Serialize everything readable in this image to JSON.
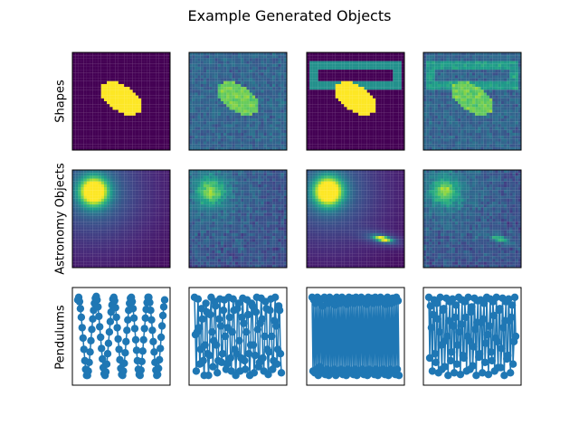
{
  "figure": {
    "title": "Example Generated Objects"
  },
  "chart_data": {
    "type": "image-grid",
    "title": "Example Generated Objects",
    "rows": [
      {
        "label": "Shapes",
        "panels": [
          {
            "kind": "image",
            "content": "filled yellow ellipse on dark background",
            "noise": false,
            "rectangle": false
          },
          {
            "kind": "image",
            "content": "ellipse with noise",
            "noise": true,
            "rectangle": false
          },
          {
            "kind": "image",
            "content": "ellipse inside rectangle frame",
            "noise": false,
            "rectangle": true
          },
          {
            "kind": "image",
            "content": "ellipse inside rectangle frame with noise",
            "noise": true,
            "rectangle": true
          }
        ]
      },
      {
        "label": "Astronomy Objects",
        "panels": [
          {
            "kind": "image",
            "content": "bright star with halo",
            "noise": false,
            "galaxy": false
          },
          {
            "kind": "image",
            "content": "star with noise",
            "noise": true,
            "galaxy": false
          },
          {
            "kind": "image",
            "content": "star with galaxy",
            "noise": false,
            "galaxy": true
          },
          {
            "kind": "image",
            "content": "star with galaxy and noise",
            "noise": true,
            "galaxy": true
          }
        ]
      },
      {
        "label": "Pendulums",
        "panels": [
          {
            "kind": "line",
            "y": [
              0.92,
              0.95,
              0.9,
              0.82,
              0.72,
              0.6,
              0.48,
              0.35,
              0.22,
              0.12,
              0.05,
              0.05,
              0.1,
              0.2,
              0.32,
              0.45,
              0.58,
              0.7,
              0.8,
              0.88,
              0.94,
              0.96,
              0.92,
              0.84,
              0.73,
              0.61,
              0.49,
              0.36,
              0.24,
              0.14,
              0.07,
              0.05,
              0.09,
              0.18,
              0.3,
              0.42,
              0.55,
              0.67,
              0.78,
              0.86,
              0.93,
              0.95,
              0.91,
              0.83,
              0.72,
              0.6,
              0.47,
              0.35,
              0.23,
              0.13,
              0.06,
              0.05,
              0.1,
              0.19,
              0.31,
              0.44,
              0.57,
              0.69,
              0.8,
              0.88,
              0.94,
              0.95,
              0.9,
              0.82,
              0.71,
              0.59,
              0.46,
              0.34,
              0.22,
              0.12,
              0.06,
              0.05,
              0.11,
              0.21,
              0.33,
              0.46,
              0.59,
              0.71,
              0.81,
              0.89,
              0.95,
              0.95,
              0.89,
              0.8,
              0.69,
              0.57,
              0.44,
              0.32,
              0.2,
              0.11,
              0.05,
              0.06,
              0.13,
              0.23,
              0.36,
              0.49,
              0.62,
              0.74,
              0.84,
              0.92
            ]
          },
          {
            "kind": "line",
            "y": [
              0.95,
              0.52,
              0.1,
              0.55,
              0.93,
              0.6,
              0.18,
              0.35,
              0.82,
              0.7,
              0.22,
              0.05,
              0.4,
              0.88,
              0.78,
              0.3,
              0.05,
              0.28,
              0.75,
              0.95,
              0.55,
              0.15,
              0.45,
              0.9,
              0.85,
              0.4,
              0.08,
              0.22,
              0.7,
              0.93,
              0.62,
              0.2,
              0.3,
              0.8,
              0.92,
              0.5,
              0.12,
              0.18,
              0.6,
              0.95,
              0.72,
              0.25,
              0.1,
              0.55,
              0.93,
              0.8,
              0.35,
              0.05,
              0.3,
              0.82,
              0.88,
              0.45,
              0.1,
              0.25,
              0.72,
              0.94,
              0.65,
              0.22,
              0.12,
              0.55,
              0.92,
              0.75,
              0.3,
              0.05,
              0.4,
              0.88,
              0.85,
              0.4,
              0.08,
              0.28,
              0.78,
              0.95,
              0.58,
              0.15,
              0.2,
              0.65,
              0.94,
              0.7,
              0.25,
              0.1,
              0.5,
              0.9,
              0.82,
              0.35,
              0.06,
              0.32,
              0.8,
              0.93,
              0.5,
              0.12,
              0.22,
              0.68,
              0.95,
              0.62,
              0.18,
              0.35,
              0.85,
              0.8,
              0.3,
              0.08
            ]
          },
          {
            "kind": "line",
            "y": [
              0.95,
              0.1,
              0.92,
              0.08,
              0.88,
              0.12,
              0.95,
              0.05,
              0.9,
              0.15,
              0.93,
              0.08,
              0.85,
              0.1,
              0.95,
              0.06,
              0.92,
              0.12,
              0.88,
              0.05,
              0.95,
              0.1,
              0.9,
              0.08,
              0.93,
              0.12,
              0.86,
              0.05,
              0.95,
              0.1,
              0.92,
              0.08,
              0.88,
              0.12,
              0.95,
              0.06,
              0.9,
              0.1,
              0.93,
              0.05,
              0.87,
              0.12,
              0.95,
              0.08,
              0.91,
              0.1,
              0.94,
              0.06,
              0.88,
              0.12,
              0.95,
              0.05,
              0.92,
              0.1,
              0.89,
              0.08,
              0.95,
              0.12,
              0.9,
              0.06,
              0.93,
              0.1,
              0.87,
              0.05,
              0.95,
              0.12,
              0.91,
              0.08,
              0.94,
              0.1,
              0.88,
              0.06,
              0.95,
              0.12,
              0.92,
              0.05,
              0.89,
              0.1,
              0.95,
              0.08,
              0.9,
              0.12,
              0.93,
              0.06,
              0.87,
              0.1,
              0.95,
              0.05,
              0.92,
              0.12,
              0.88,
              0.08,
              0.94,
              0.1,
              0.9,
              0.06,
              0.95,
              0.12,
              0.91,
              0.05
            ]
          },
          {
            "kind": "line",
            "y": [
              0.95,
              0.25,
              0.85,
              0.6,
              0.1,
              0.75,
              0.92,
              0.3,
              0.2,
              0.88,
              0.7,
              0.08,
              0.55,
              0.95,
              0.4,
              0.12,
              0.8,
              0.82,
              0.15,
              0.45,
              0.94,
              0.5,
              0.05,
              0.68,
              0.9,
              0.22,
              0.32,
              0.93,
              0.62,
              0.08,
              0.72,
              0.86,
              0.18,
              0.4,
              0.95,
              0.55,
              0.06,
              0.64,
              0.92,
              0.28,
              0.25,
              0.9,
              0.72,
              0.1,
              0.5,
              0.95,
              0.45,
              0.12,
              0.78,
              0.84,
              0.16,
              0.38,
              0.94,
              0.58,
              0.05,
              0.66,
              0.91,
              0.26,
              0.3,
              0.92,
              0.66,
              0.08,
              0.7,
              0.88,
              0.2,
              0.42,
              0.95,
              0.52,
              0.06,
              0.62,
              0.93,
              0.32,
              0.22,
              0.9,
              0.74,
              0.1,
              0.48,
              0.95,
              0.44,
              0.14,
              0.8,
              0.82,
              0.14,
              0.36,
              0.94,
              0.6,
              0.05,
              0.68,
              0.9,
              0.24,
              0.28,
              0.93,
              0.68,
              0.08,
              0.72,
              0.86,
              0.18,
              0.44,
              0.95,
              0.5
            ]
          }
        ]
      }
    ]
  }
}
